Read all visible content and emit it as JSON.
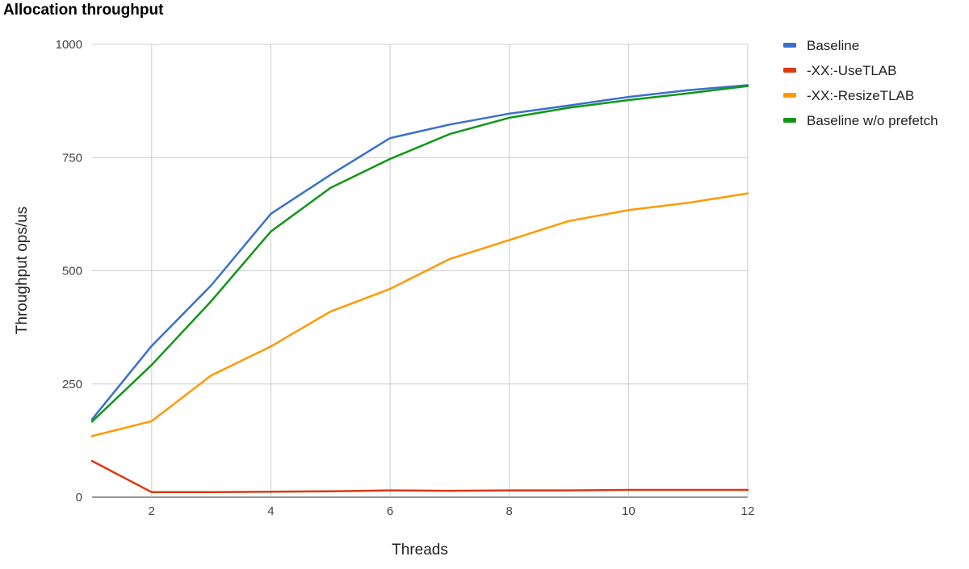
{
  "chart_data": {
    "type": "line",
    "title": "Allocation throughput",
    "xlabel": "Threads",
    "ylabel": "Throughput ops/us",
    "xlim": [
      1,
      12
    ],
    "ylim": [
      0,
      1000
    ],
    "x_ticks": [
      2,
      4,
      6,
      8,
      10,
      12
    ],
    "y_ticks": [
      0,
      250,
      500,
      750,
      1000
    ],
    "grid": true,
    "legend_position": "right",
    "x": [
      1,
      2,
      3,
      4,
      5,
      6,
      7,
      8,
      9,
      10,
      11,
      12
    ],
    "series": [
      {
        "name": "Baseline",
        "color": "#3c6fcd",
        "values": [
          172,
          334,
          468,
          626,
          712,
          793,
          823,
          847,
          865,
          884,
          899,
          910
        ]
      },
      {
        "name": "-XX:-UseTLAB",
        "color": "#dc3912",
        "values": [
          80,
          11,
          11,
          12,
          13,
          15,
          14,
          15,
          15,
          16,
          16,
          16
        ]
      },
      {
        "name": "-XX:-ResizeTLAB",
        "color": "#ff9900",
        "values": [
          135,
          168,
          269,
          333,
          410,
          460,
          526,
          568,
          610,
          634,
          650,
          671
        ]
      },
      {
        "name": "Baseline w/o prefetch",
        "color": "#109618",
        "values": [
          167,
          292,
          433,
          587,
          683,
          747,
          802,
          838,
          860,
          877,
          892,
          908
        ]
      }
    ]
  }
}
